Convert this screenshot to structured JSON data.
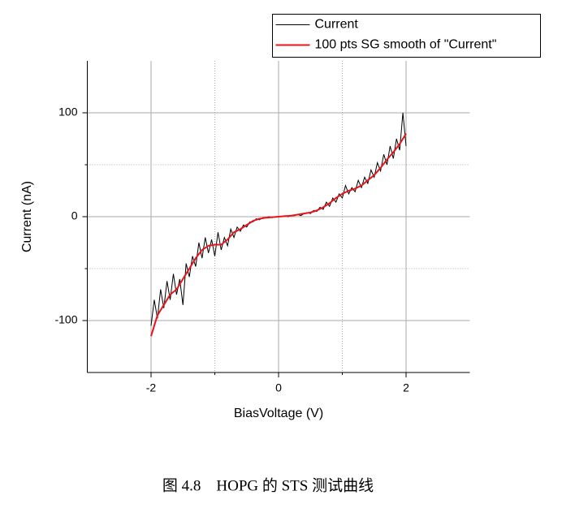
{
  "chart_data": {
    "type": "line",
    "x_label": "BiasVoltage (V)",
    "y_label": "Current (nA)",
    "caption": "图 4.8　HOPG 的 STS 测试曲线",
    "xlim": [
      -3,
      3
    ],
    "xticks": [
      -2,
      0,
      2
    ],
    "xminor": [
      -1,
      1
    ],
    "ylim": [
      -150,
      150
    ],
    "yticks": [
      -100,
      0,
      100
    ],
    "yminor": [
      -50,
      50
    ],
    "grid": true,
    "legend": "top-right",
    "series": [
      {
        "name": "Current",
        "color": "#000000",
        "x": [
          -2.0,
          -1.95,
          -1.9,
          -1.85,
          -1.8,
          -1.75,
          -1.7,
          -1.65,
          -1.6,
          -1.55,
          -1.5,
          -1.45,
          -1.4,
          -1.35,
          -1.3,
          -1.25,
          -1.2,
          -1.15,
          -1.1,
          -1.05,
          -1.0,
          -0.95,
          -0.9,
          -0.85,
          -0.8,
          -0.75,
          -0.7,
          -0.65,
          -0.6,
          -0.55,
          -0.5,
          -0.45,
          -0.4,
          -0.35,
          -0.3,
          -0.25,
          -0.2,
          -0.15,
          -0.1,
          -0.05,
          0,
          0.05,
          0.1,
          0.15,
          0.2,
          0.25,
          0.3,
          0.35,
          0.4,
          0.45,
          0.5,
          0.55,
          0.6,
          0.65,
          0.7,
          0.75,
          0.8,
          0.85,
          0.9,
          0.95,
          1.0,
          1.05,
          1.1,
          1.15,
          1.2,
          1.25,
          1.3,
          1.35,
          1.4,
          1.45,
          1.5,
          1.55,
          1.6,
          1.65,
          1.7,
          1.75,
          1.8,
          1.85,
          1.9,
          1.95,
          2.0
        ],
        "values": [
          -105,
          -80,
          -98,
          -70,
          -88,
          -62,
          -80,
          -55,
          -75,
          -60,
          -85,
          -45,
          -58,
          -38,
          -48,
          -25,
          -40,
          -20,
          -35,
          -22,
          -38,
          -15,
          -32,
          -20,
          -28,
          -12,
          -20,
          -10,
          -14,
          -8,
          -10,
          -5,
          -5,
          -2,
          -3,
          -1,
          -1,
          0,
          -1,
          0,
          0,
          0,
          1,
          0,
          1,
          1,
          2,
          1,
          3,
          4,
          3,
          6,
          5,
          9,
          7,
          14,
          10,
          18,
          14,
          22,
          18,
          30,
          22,
          28,
          24,
          35,
          28,
          38,
          32,
          45,
          38,
          52,
          44,
          60,
          50,
          68,
          56,
          75,
          64,
          100,
          68
        ]
      },
      {
        "name": "100 pts SG smooth of \"Current\"",
        "color": "#e8141b",
        "x": [
          -2.0,
          -1.9,
          -1.8,
          -1.7,
          -1.6,
          -1.5,
          -1.4,
          -1.3,
          -1.2,
          -1.1,
          -1.0,
          -0.9,
          -0.8,
          -0.7,
          -0.6,
          -0.5,
          -0.4,
          -0.3,
          -0.2,
          -0.1,
          0,
          0.1,
          0.2,
          0.3,
          0.4,
          0.5,
          0.6,
          0.7,
          0.8,
          0.9,
          1.0,
          1.1,
          1.2,
          1.3,
          1.4,
          1.5,
          1.6,
          1.7,
          1.8,
          1.9,
          2.0
        ],
        "values": [
          -115,
          -95,
          -85,
          -75,
          -70,
          -60,
          -50,
          -40,
          -32,
          -28,
          -27,
          -27,
          -22,
          -15,
          -12,
          -8,
          -4,
          -2,
          -1,
          -0.5,
          0,
          0.5,
          1,
          2,
          3,
          4,
          6,
          9,
          13,
          18,
          22,
          25,
          27,
          30,
          35,
          40,
          47,
          55,
          62,
          70,
          80
        ]
      }
    ]
  }
}
